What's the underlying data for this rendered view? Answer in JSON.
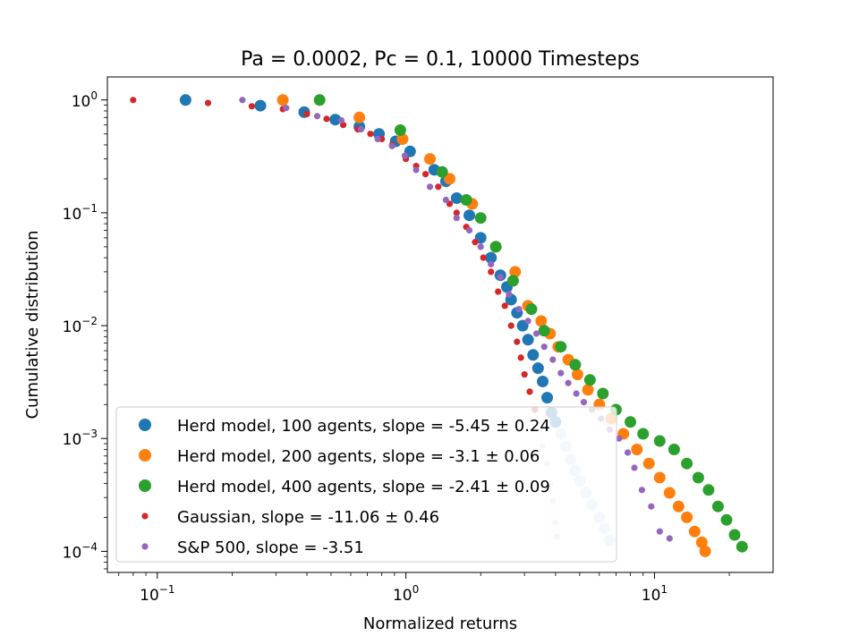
{
  "chart_data": {
    "type": "scatter",
    "title": "Pa = 0.0002, Pc = 0.1, 10000 Timesteps",
    "xlabel": "Normalized returns",
    "ylabel": "Cumulative distribution",
    "xscale": "log",
    "yscale": "log",
    "xlim": [
      0.063,
      30
    ],
    "ylim": [
      6.5e-05,
      1.6
    ],
    "x_ticks": [
      {
        "value": 0.1,
        "base": "10",
        "exp": "−1"
      },
      {
        "value": 1,
        "base": "10",
        "exp": "0"
      },
      {
        "value": 10,
        "base": "10",
        "exp": "1"
      }
    ],
    "y_ticks": [
      {
        "value": 1,
        "base": "10",
        "exp": "0"
      },
      {
        "value": 0.1,
        "base": "10",
        "exp": "−1"
      },
      {
        "value": 0.01,
        "base": "10",
        "exp": "−2"
      },
      {
        "value": 0.001,
        "base": "10",
        "exp": "−3"
      },
      {
        "value": 0.0001,
        "base": "10",
        "exp": "−4"
      }
    ],
    "grid": false,
    "legend_position": "lower-left",
    "series": [
      {
        "name": "Herd model, 100 agents, slope = -5.45 ± 0.24",
        "color": "#1f77b4",
        "tail_color": "#c6dbef",
        "marker": "large",
        "tail_start_x": 4.0,
        "points": [
          [
            0.13,
            1.0
          ],
          [
            0.26,
            0.89
          ],
          [
            0.39,
            0.78
          ],
          [
            0.52,
            0.67
          ],
          [
            0.65,
            0.58
          ],
          [
            0.78,
            0.5
          ],
          [
            0.91,
            0.43
          ],
          [
            1.04,
            0.35
          ],
          [
            1.3,
            0.24
          ],
          [
            1.45,
            0.19
          ],
          [
            1.6,
            0.135
          ],
          [
            1.8,
            0.095
          ],
          [
            2.0,
            0.06
          ],
          [
            2.2,
            0.04
          ],
          [
            2.4,
            0.028
          ],
          [
            2.55,
            0.022
          ],
          [
            2.65,
            0.017
          ],
          [
            2.8,
            0.013
          ],
          [
            2.95,
            0.01
          ],
          [
            3.1,
            0.0075
          ],
          [
            3.25,
            0.0055
          ],
          [
            3.4,
            0.0042
          ],
          [
            3.55,
            0.0032
          ],
          [
            3.7,
            0.0023
          ],
          [
            3.85,
            0.0017
          ],
          [
            4.0,
            0.0014
          ],
          [
            4.2,
            0.0011
          ],
          [
            4.4,
            0.00085
          ],
          [
            4.6,
            0.00065
          ],
          [
            4.8,
            0.00052
          ],
          [
            5.0,
            0.00042
          ],
          [
            5.3,
            0.00033
          ],
          [
            5.6,
            0.00026
          ],
          [
            6.0,
            0.0002
          ],
          [
            6.3,
            0.00016
          ],
          [
            6.6,
            0.000125
          ]
        ]
      },
      {
        "name": "Herd model, 200 agents, slope = -3.1 ± 0.06",
        "color": "#ff7f0e",
        "marker": "large",
        "points": [
          [
            0.32,
            1.0
          ],
          [
            0.65,
            0.7
          ],
          [
            0.97,
            0.45
          ],
          [
            1.25,
            0.3
          ],
          [
            1.5,
            0.2
          ],
          [
            1.85,
            0.12
          ],
          [
            2.3,
            0.05
          ],
          [
            2.75,
            0.03
          ],
          [
            3.1,
            0.015
          ],
          [
            3.5,
            0.011
          ],
          [
            3.8,
            0.0085
          ],
          [
            4.1,
            0.0065
          ],
          [
            4.5,
            0.005
          ],
          [
            4.9,
            0.0037
          ],
          [
            5.4,
            0.0027
          ],
          [
            6.0,
            0.002
          ],
          [
            6.7,
            0.0015
          ],
          [
            7.5,
            0.0011
          ],
          [
            8.5,
            0.0008
          ],
          [
            9.5,
            0.0006
          ],
          [
            10.5,
            0.00045
          ],
          [
            11.5,
            0.00033
          ],
          [
            12.5,
            0.00025
          ],
          [
            13.5,
            0.0002
          ],
          [
            14.5,
            0.00015
          ],
          [
            15.5,
            0.00012
          ],
          [
            16.0,
            0.0001
          ]
        ]
      },
      {
        "name": "Herd model, 400 agents, slope = -2.41 ± 0.09",
        "color": "#2ca02c",
        "marker": "large",
        "points": [
          [
            0.45,
            1.0
          ],
          [
            0.95,
            0.54
          ],
          [
            1.4,
            0.23
          ],
          [
            1.75,
            0.13
          ],
          [
            2.0,
            0.09
          ],
          [
            2.3,
            0.05
          ],
          [
            2.7,
            0.025
          ],
          [
            3.2,
            0.014
          ],
          [
            3.6,
            0.009
          ],
          [
            4.2,
            0.0065
          ],
          [
            4.8,
            0.0045
          ],
          [
            5.5,
            0.0033
          ],
          [
            6.2,
            0.0025
          ],
          [
            7.0,
            0.0018
          ],
          [
            8.0,
            0.0014
          ],
          [
            9.0,
            0.0011
          ],
          [
            10.5,
            0.00095
          ],
          [
            12.0,
            0.0008
          ],
          [
            13.5,
            0.0006
          ],
          [
            15.0,
            0.00045
          ],
          [
            16.5,
            0.00035
          ],
          [
            18.0,
            0.00025
          ],
          [
            19.5,
            0.00019
          ],
          [
            21.0,
            0.00014
          ],
          [
            22.5,
            0.00011
          ]
        ]
      },
      {
        "name": "Gaussian, slope = -11.06 ± 0.46",
        "color": "#d62728",
        "tail_color": "#f3c7c7",
        "marker": "small",
        "tail_start_x": 3.3,
        "points": [
          [
            0.08,
            1.0
          ],
          [
            0.16,
            0.94
          ],
          [
            0.24,
            0.88
          ],
          [
            0.32,
            0.83
          ],
          [
            0.4,
            0.75
          ],
          [
            0.48,
            0.68
          ],
          [
            0.56,
            0.6
          ],
          [
            0.64,
            0.55
          ],
          [
            0.72,
            0.5
          ],
          [
            0.8,
            0.45
          ],
          [
            0.88,
            0.4
          ],
          [
            1.0,
            0.3
          ],
          [
            1.1,
            0.26
          ],
          [
            1.2,
            0.22
          ],
          [
            1.35,
            0.17
          ],
          [
            1.5,
            0.12
          ],
          [
            1.6,
            0.1
          ],
          [
            1.75,
            0.075
          ],
          [
            1.9,
            0.055
          ],
          [
            2.05,
            0.04
          ],
          [
            2.2,
            0.03
          ],
          [
            2.35,
            0.02
          ],
          [
            2.5,
            0.015
          ],
          [
            2.65,
            0.01
          ],
          [
            2.8,
            0.0072
          ],
          [
            2.9,
            0.0052
          ],
          [
            3.0,
            0.0037
          ],
          [
            3.15,
            0.0026
          ],
          [
            3.3,
            0.0018
          ],
          [
            3.45,
            0.0012
          ],
          [
            3.55,
            0.00085
          ],
          [
            3.7,
            0.0006
          ],
          [
            3.8,
            0.0004
          ],
          [
            3.9,
            0.00028
          ],
          [
            4.0,
            0.00018
          ],
          [
            4.05,
            0.000135
          ]
        ]
      },
      {
        "name": "S&P 500, slope = -3.51",
        "color": "#9467bd",
        "marker": "small",
        "points": [
          [
            0.22,
            1.0
          ],
          [
            0.33,
            0.85
          ],
          [
            0.44,
            0.72
          ],
          [
            0.55,
            0.66
          ],
          [
            0.66,
            0.55
          ],
          [
            0.77,
            0.45
          ],
          [
            0.88,
            0.39
          ],
          [
            0.99,
            0.32
          ],
          [
            1.1,
            0.24
          ],
          [
            1.25,
            0.17
          ],
          [
            1.45,
            0.13
          ],
          [
            1.6,
            0.09
          ],
          [
            1.8,
            0.07
          ],
          [
            2.0,
            0.05
          ],
          [
            2.2,
            0.035
          ],
          [
            2.4,
            0.027
          ],
          [
            2.6,
            0.019
          ],
          [
            2.85,
            0.014
          ],
          [
            3.1,
            0.011
          ],
          [
            3.35,
            0.0085
          ],
          [
            3.6,
            0.0065
          ],
          [
            3.9,
            0.005
          ],
          [
            4.2,
            0.0038
          ],
          [
            4.5,
            0.0031
          ],
          [
            4.85,
            0.0025
          ],
          [
            5.2,
            0.0021
          ],
          [
            5.6,
            0.0018
          ],
          [
            6.1,
            0.0015
          ],
          [
            6.6,
            0.0012
          ],
          [
            7.2,
            0.001
          ],
          [
            7.8,
            0.00075
          ],
          [
            8.3,
            0.00055
          ],
          [
            8.9,
            0.00035
          ],
          [
            9.7,
            0.00025
          ],
          [
            10.5,
            0.00015
          ],
          [
            11.5,
            0.00013
          ]
        ]
      }
    ]
  }
}
